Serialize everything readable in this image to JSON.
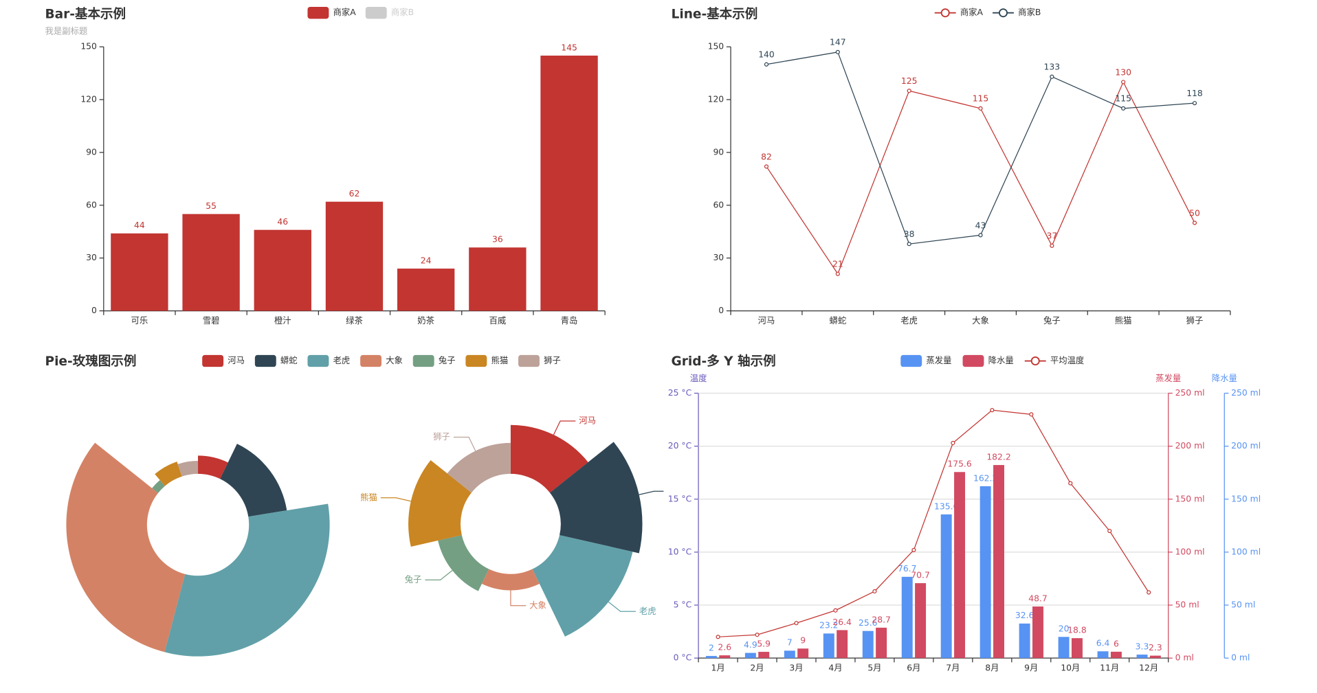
{
  "chart_data": [
    {
      "type": "bar",
      "title": "Bar-基本示例",
      "subtitle": "我是副标题",
      "categories": [
        "可乐",
        "雪碧",
        "橙汁",
        "绿茶",
        "奶茶",
        "百威",
        "青岛"
      ],
      "series": [
        {
          "name": "商家A",
          "color": "#c23531",
          "values": [
            44,
            55,
            46,
            62,
            24,
            36,
            145
          ]
        },
        {
          "name": "商家B",
          "color": "#2f4554",
          "hidden": true,
          "values": [
            null,
            null,
            null,
            null,
            null,
            null,
            null
          ]
        }
      ],
      "ylim": [
        0,
        150
      ],
      "yticks": [
        0,
        30,
        60,
        90,
        120,
        150
      ],
      "grid": false,
      "data_labels": true
    },
    {
      "type": "line",
      "title": "Line-基本示例",
      "categories": [
        "河马",
        "蟒蛇",
        "老虎",
        "大象",
        "兔子",
        "熊猫",
        "狮子"
      ],
      "series": [
        {
          "name": "商家A",
          "color": "#c23531",
          "values": [
            82,
            21,
            125,
            115,
            37,
            130,
            50
          ]
        },
        {
          "name": "商家B",
          "color": "#2f4554",
          "values": [
            140,
            147,
            38,
            43,
            133,
            115,
            118
          ]
        }
      ],
      "ylim": [
        0,
        150
      ],
      "yticks": [
        0,
        30,
        60,
        90,
        120,
        150
      ],
      "grid": false,
      "data_labels": true
    },
    {
      "type": "pie",
      "title": "Pie-玫瑰图示例",
      "categories": [
        "河马",
        "蟒蛇",
        "老虎",
        "大象",
        "兔子",
        "熊猫",
        "狮子"
      ],
      "colors": [
        "#c23531",
        "#2f4554",
        "#61a0a8",
        "#d48265",
        "#749f83",
        "#ca8622",
        "#bda29a"
      ],
      "series": [
        {
          "rose_type": "radius",
          "values": [
            7,
            15,
            31,
            31,
            3,
            6,
            5
          ]
        },
        {
          "rose_type": "area",
          "values": [
            60,
            100,
            92,
            20,
            30,
            64,
            38
          ],
          "data_labels": true
        }
      ]
    },
    {
      "type": "bar",
      "title": "Grid-多 Y 轴示例",
      "categories": [
        "1月",
        "2月",
        "3月",
        "4月",
        "5月",
        "6月",
        "7月",
        "8月",
        "9月",
        "10月",
        "11月",
        "12月"
      ],
      "series": [
        {
          "name": "蒸发量",
          "color": "#5793f3",
          "axis": "y2",
          "values": [
            2,
            4.9,
            7,
            23.2,
            25.6,
            76.7,
            135.6,
            162.2,
            32.6,
            20,
            6.4,
            3.3
          ]
        },
        {
          "name": "降水量",
          "color": "#d14a61",
          "axis": "y3",
          "values": [
            2.6,
            5.9,
            9,
            26.4,
            28.7,
            70.7,
            175.6,
            182.2,
            48.7,
            18.8,
            6,
            2.3
          ]
        },
        {
          "name": "平均温度",
          "type": "line",
          "color": "#c23531",
          "axis": "y",
          "data_labels": false,
          "values": [
            2.0,
            2.2,
            3.3,
            4.5,
            6.3,
            10.2,
            20.3,
            23.4,
            23.0,
            16.5,
            12.0,
            6.2
          ]
        }
      ],
      "ylabel": "温度",
      "y_color": "#675bba",
      "ylim": [
        0,
        25
      ],
      "yticks": [
        {
          "value": 0,
          "label": "0 °C"
        },
        {
          "value": 5,
          "label": "5 °C"
        },
        {
          "value": 10,
          "label": "10 °C"
        },
        {
          "value": 15,
          "label": "15 °C"
        },
        {
          "value": 20,
          "label": "20 °C"
        },
        {
          "value": 25,
          "label": "25 °C"
        }
      ],
      "y2label": "蒸发量",
      "y2_color": "#d14a61",
      "y2lim": [
        0,
        250
      ],
      "y2ticks": [
        {
          "value": 0,
          "label": "0 ml"
        },
        {
          "value": 50,
          "label": "50 ml"
        },
        {
          "value": 100,
          "label": "100 ml"
        },
        {
          "value": 150,
          "label": "150 ml"
        },
        {
          "value": 200,
          "label": "200 ml"
        },
        {
          "value": 250,
          "label": "250 ml"
        }
      ],
      "y3label": "降水量",
      "y3_color": "#5793f3",
      "y3lim": [
        0,
        250
      ],
      "y3ticks": [
        {
          "value": 0,
          "label": "0 ml"
        },
        {
          "value": 50,
          "label": "50 ml"
        },
        {
          "value": 100,
          "label": "100 ml"
        },
        {
          "value": 150,
          "label": "150 ml"
        },
        {
          "value": 200,
          "label": "200 ml"
        },
        {
          "value": 250,
          "label": "250 ml"
        }
      ],
      "grid": true,
      "data_labels": true
    }
  ]
}
